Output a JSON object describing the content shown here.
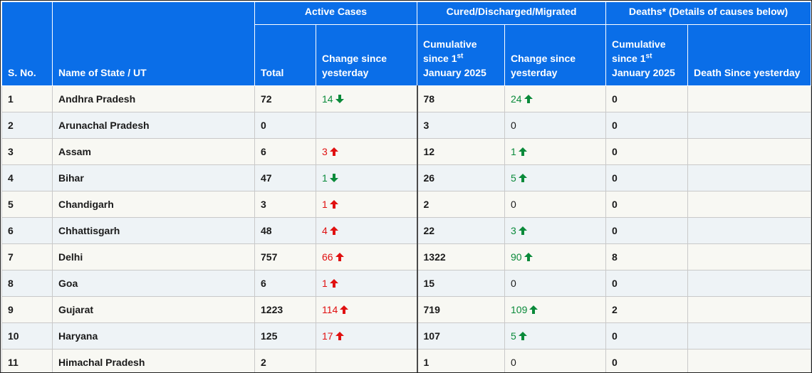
{
  "header": {
    "sno": "S. No.",
    "state": "Name of State / UT",
    "active_group": "Active Cases",
    "cured_group": "Cured/Discharged/Migrated",
    "deaths_group": "Deaths* (Details of causes below)",
    "total": "Total",
    "change_since_yesterday": "Change since yesterday",
    "cumulative_prefix": "Cumulative since 1",
    "cumulative_sup": "st",
    "cumulative_suffix": "January 2025",
    "death_since_yesterday": "Death Since yesterday"
  },
  "colors": {
    "header_bg": "#0a6ee8",
    "increase": "#e01010",
    "decrease_or_cured": "#0a8a3a"
  },
  "icons": {
    "increase": "arrow-up-icon",
    "decrease": "arrow-down-icon"
  },
  "rows": [
    {
      "sno": "1",
      "state": "Andhra Pradesh",
      "active_total": "72",
      "active_change": "14",
      "active_dir": "down",
      "cured_cum": "78",
      "cured_change": "24",
      "cured_dir": "up",
      "deaths_cum": "0",
      "deaths_change": ""
    },
    {
      "sno": "2",
      "state": "Arunachal Pradesh",
      "active_total": "0",
      "active_change": "",
      "active_dir": "",
      "cured_cum": "3",
      "cured_change": "0",
      "cured_dir": "",
      "deaths_cum": "0",
      "deaths_change": ""
    },
    {
      "sno": "3",
      "state": "Assam",
      "active_total": "6",
      "active_change": "3",
      "active_dir": "up",
      "cured_cum": "12",
      "cured_change": "1",
      "cured_dir": "up",
      "deaths_cum": "0",
      "deaths_change": ""
    },
    {
      "sno": "4",
      "state": "Bihar",
      "active_total": "47",
      "active_change": "1",
      "active_dir": "down",
      "cured_cum": "26",
      "cured_change": "5",
      "cured_dir": "up",
      "deaths_cum": "0",
      "deaths_change": ""
    },
    {
      "sno": "5",
      "state": "Chandigarh",
      "active_total": "3",
      "active_change": "1",
      "active_dir": "up",
      "cured_cum": "2",
      "cured_change": "0",
      "cured_dir": "",
      "deaths_cum": "0",
      "deaths_change": ""
    },
    {
      "sno": "6",
      "state": "Chhattisgarh",
      "active_total": "48",
      "active_change": "4",
      "active_dir": "up",
      "cured_cum": "22",
      "cured_change": "3",
      "cured_dir": "up",
      "deaths_cum": "0",
      "deaths_change": ""
    },
    {
      "sno": "7",
      "state": "Delhi",
      "active_total": "757",
      "active_change": "66",
      "active_dir": "up",
      "cured_cum": "1322",
      "cured_change": "90",
      "cured_dir": "up",
      "deaths_cum": "8",
      "deaths_change": ""
    },
    {
      "sno": "8",
      "state": "Goa",
      "active_total": "6",
      "active_change": "1",
      "active_dir": "up",
      "cured_cum": "15",
      "cured_change": "0",
      "cured_dir": "",
      "deaths_cum": "0",
      "deaths_change": ""
    },
    {
      "sno": "9",
      "state": "Gujarat",
      "active_total": "1223",
      "active_change": "114",
      "active_dir": "up",
      "cured_cum": "719",
      "cured_change": "109",
      "cured_dir": "up",
      "deaths_cum": "2",
      "deaths_change": ""
    },
    {
      "sno": "10",
      "state": "Haryana",
      "active_total": "125",
      "active_change": "17",
      "active_dir": "up",
      "cured_cum": "107",
      "cured_change": "5",
      "cured_dir": "up",
      "deaths_cum": "0",
      "deaths_change": ""
    },
    {
      "sno": "11",
      "state": "Himachal Pradesh",
      "active_total": "2",
      "active_change": "",
      "active_dir": "",
      "cured_cum": "1",
      "cured_change": "0",
      "cured_dir": "",
      "deaths_cum": "0",
      "deaths_change": ""
    }
  ]
}
